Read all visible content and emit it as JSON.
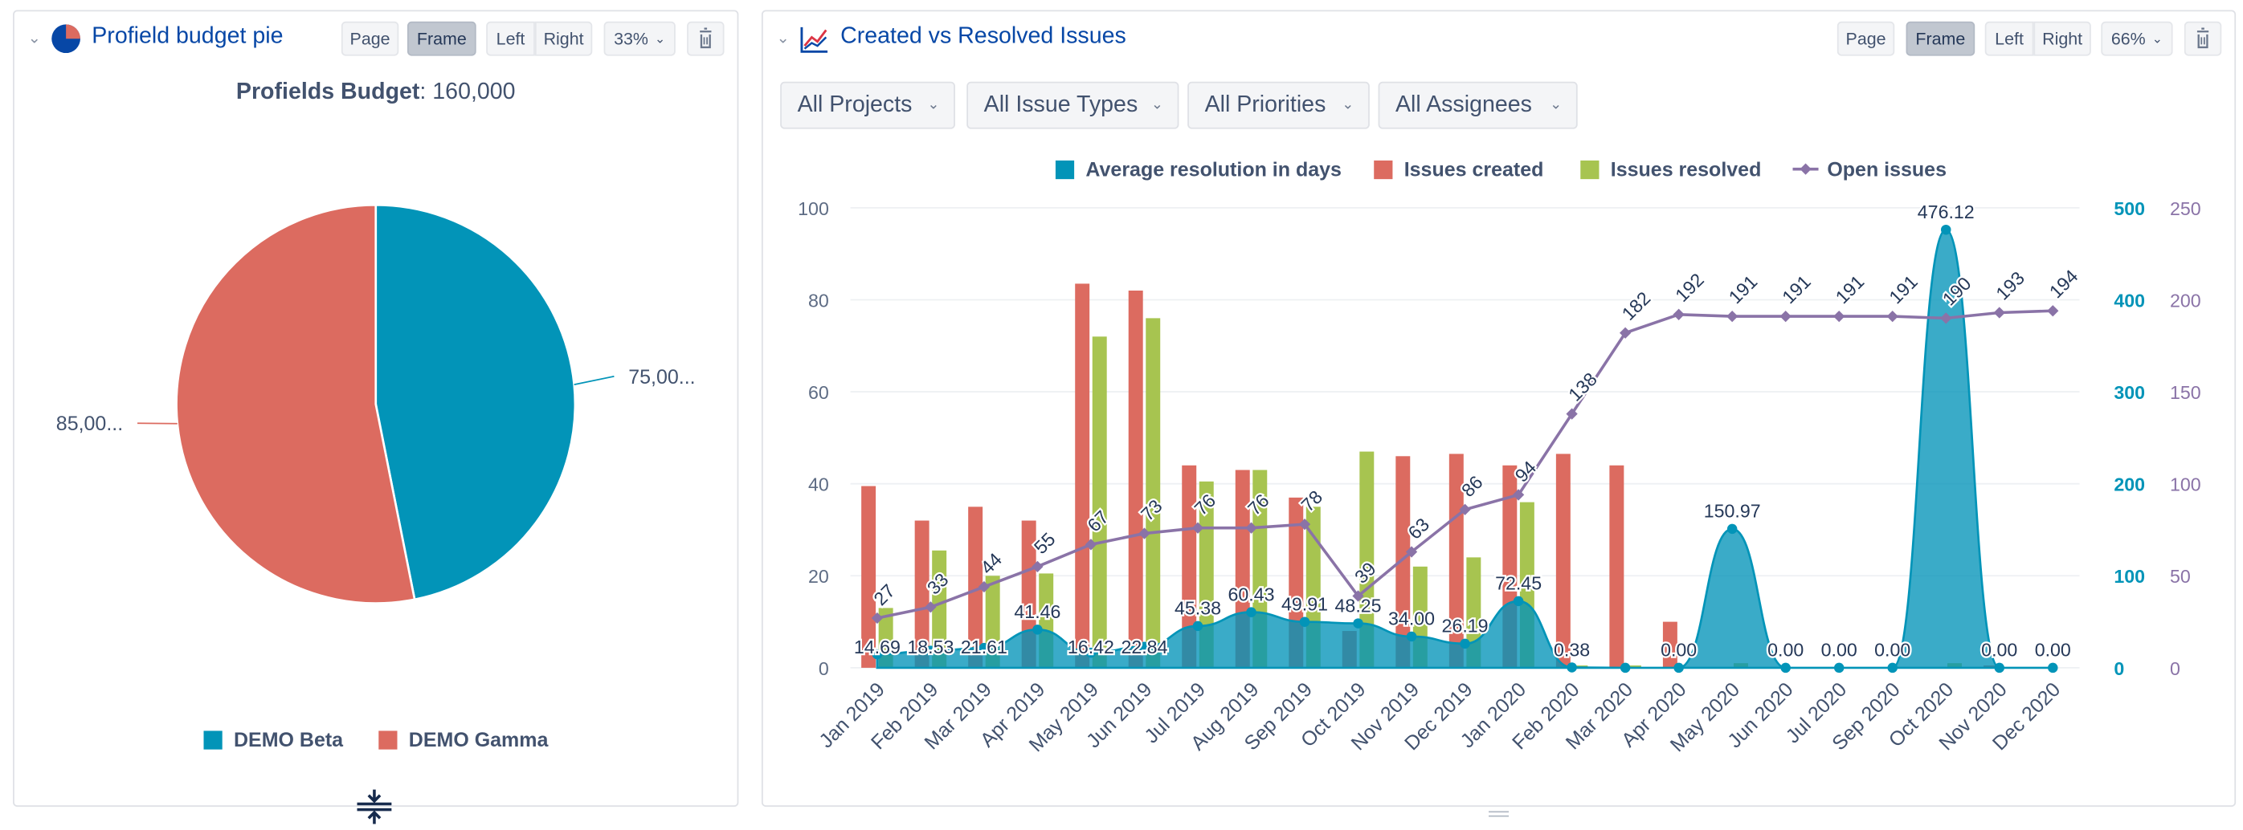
{
  "left_panel": {
    "title": "Profield budget pie",
    "page_label": "Page",
    "frame_label": "Frame",
    "left_label": "Left",
    "right_label": "Right",
    "zoom": "33%",
    "chart_title_bold": "Profields Budget",
    "chart_title_rest": ": 160,000"
  },
  "right_panel": {
    "title": "Created vs Resolved Issues",
    "page_label": "Page",
    "frame_label": "Frame",
    "left_label": "Left",
    "right_label": "Right",
    "zoom": "66%",
    "filters": [
      "All Projects",
      "All Issue Types",
      "All Priorities",
      "All Assignees"
    ]
  },
  "colors": {
    "teal": "#0294b8",
    "red": "#dc6b60",
    "green": "#a7c450",
    "purple": "#8a73a7",
    "title_blue": "#0747a6"
  },
  "chart_data": [
    {
      "type": "pie",
      "title": "Profields Budget: 160,000",
      "slices": [
        {
          "name": "DEMO Beta",
          "value": 75000,
          "label": "75,00...",
          "color": "#0294b8"
        },
        {
          "name": "DEMO Gamma",
          "value": 85000,
          "label": "85,00...",
          "color": "#dc6b60"
        }
      ],
      "legend": "bottom"
    },
    {
      "type": "bar",
      "title": "",
      "categories": [
        "Jan 2019",
        "Feb 2019",
        "Mar 2019",
        "Apr 2019",
        "May 2019",
        "Jun 2019",
        "Jul 2019",
        "Aug 2019",
        "Sep 2019",
        "Oct 2019",
        "Nov 2019",
        "Dec 2019",
        "Jan 2020",
        "Feb 2020",
        "Mar 2020",
        "Apr 2020",
        "May 2020",
        "Jun 2020",
        "Jul 2020",
        "Sep 2020",
        "Oct 2020",
        "Nov 2020",
        "Dec 2020"
      ],
      "series": [
        {
          "name": "Average resolution in days",
          "kind": "area",
          "axis": "right-teal",
          "values": [
            14.69,
            18.53,
            21.61,
            41.46,
            16.42,
            22.84,
            45.38,
            60.43,
            49.91,
            48.25,
            34.0,
            26.19,
            72.45,
            0.38,
            0.0,
            0.0,
            150.97,
            0.0,
            0.0,
            0.0,
            476.12,
            0.0,
            0.0
          ],
          "labels": [
            "14.69",
            "18.53",
            "21.61",
            "41.46",
            "16.42",
            "22.84",
            "45.38",
            "60.43",
            "49.91",
            "48.25",
            "34.00",
            "26.19",
            "72.45",
            "0.38",
            "",
            "0.00",
            "150.97",
            "0.00",
            "0.00",
            "0.00",
            "476.12",
            "0.00",
            "0.00"
          ]
        },
        {
          "name": "Issues created",
          "kind": "bar",
          "axis": "left",
          "values": [
            39.5,
            32,
            35,
            32,
            83.5,
            82,
            44,
            43,
            37,
            8,
            46,
            46.5,
            44,
            46.5,
            44,
            10,
            0,
            0,
            0,
            0,
            0,
            0.5,
            0
          ]
        },
        {
          "name": "Issues resolved",
          "kind": "bar",
          "axis": "left",
          "values": [
            13,
            25.5,
            20,
            20.5,
            72,
            76,
            40.5,
            43,
            35,
            47,
            22,
            24,
            36,
            0.5,
            0.5,
            0,
            1,
            0,
            0,
            0,
            1,
            0,
            0
          ]
        },
        {
          "name": "Open issues",
          "kind": "line",
          "axis": "right-purple",
          "values": [
            27,
            33,
            44,
            55,
            67,
            73,
            76,
            76,
            78,
            39,
            63,
            86,
            94,
            138,
            182,
            192,
            191,
            191,
            191,
            191,
            190,
            193,
            194
          ]
        }
      ],
      "y_left": {
        "min": 0,
        "max": 100,
        "ticks": [
          "0",
          "20",
          "40",
          "60",
          "80",
          "100"
        ]
      },
      "y_right_teal": {
        "min": 0,
        "max": 500,
        "ticks": [
          "0",
          "100",
          "200",
          "300",
          "400",
          "500"
        ]
      },
      "y_right_purple": {
        "min": 0,
        "max": 250,
        "ticks": [
          "0",
          "50",
          "100",
          "150",
          "200",
          "250"
        ]
      },
      "legend": "top"
    }
  ]
}
